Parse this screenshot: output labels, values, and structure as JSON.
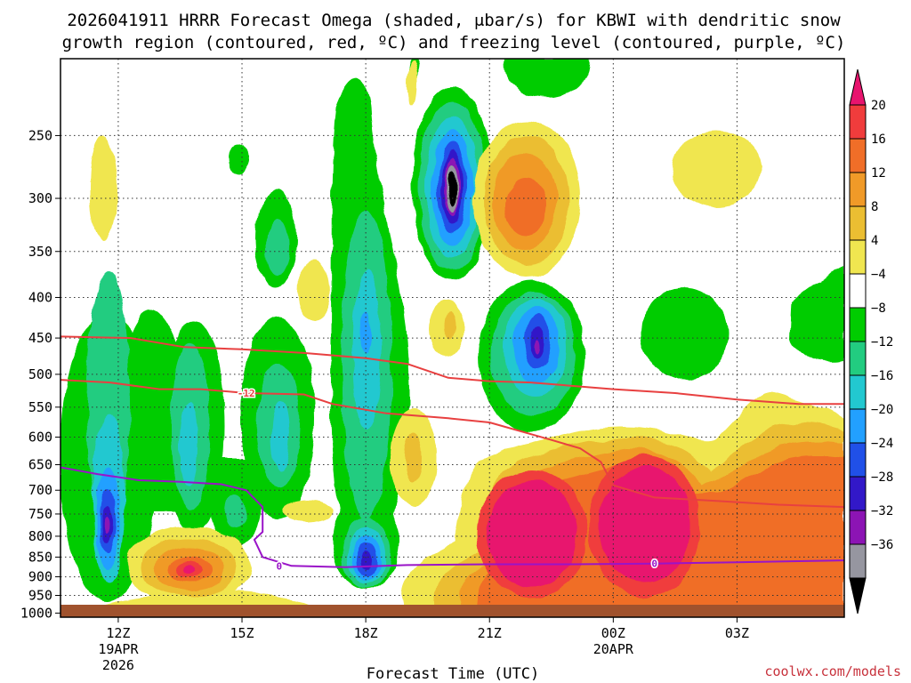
{
  "chart_data": {
    "type": "contour-timeheight",
    "title_line1": "2026041911 HRRR Forecast Omega (shaded, μbar/s) for KBWI with dendritic snow",
    "title_line2": "growth region (contoured, red, ºC) and freezing level (contoured, purple, ºC)",
    "xlabel": "Forecast Time (UTC)",
    "credit": "coolwx.com/models",
    "x_range_hours": [
      10.6,
      29.6
    ],
    "x_ticks": [
      {
        "hour": 12,
        "label": "12Z",
        "sub1": "19APR",
        "sub2": "2026"
      },
      {
        "hour": 15,
        "label": "15Z",
        "sub1": "",
        "sub2": ""
      },
      {
        "hour": 18,
        "label": "18Z",
        "sub1": "",
        "sub2": ""
      },
      {
        "hour": 21,
        "label": "21Z",
        "sub1": "",
        "sub2": ""
      },
      {
        "hour": 24,
        "label": "00Z",
        "sub1": "20APR",
        "sub2": ""
      },
      {
        "hour": 27,
        "label": "03Z",
        "sub1": "",
        "sub2": ""
      }
    ],
    "y_range_hpa": [
      1012,
      200
    ],
    "y_ticks": [
      250,
      300,
      350,
      400,
      450,
      500,
      550,
      600,
      650,
      700,
      750,
      800,
      850,
      900,
      950,
      1000
    ],
    "colorbar": {
      "labels": [
        "20",
        "16",
        "12",
        "8",
        "4",
        "−4",
        "−8",
        "−12",
        "−16",
        "−20",
        "−24",
        "−28",
        "−32",
        "−36"
      ],
      "colors": [
        "#e8146e",
        "#f03c3c",
        "#f06e28",
        "#f09a28",
        "#ebbe32",
        "#f0e650",
        "#ffffff",
        "#00cc00",
        "#22cc80",
        "#22c8d0",
        "#22a0ff",
        "#2050e8",
        "#3218c8",
        "#8c14b4",
        "#9696a0",
        "#000000"
      ]
    },
    "contour_labels": [
      {
        "text": "-12",
        "hour": 15.1,
        "hpa": 528
      },
      {
        "text": "0",
        "hour": 15.9,
        "hpa": 872
      },
      {
        "text": "0",
        "hour": 25.0,
        "hpa": 866
      }
    ],
    "series": [
      {
        "name": "dendritic upper bound (-12°C)",
        "color": "#e84040",
        "points": [
          [
            10.6,
            448
          ],
          [
            12.3,
            450
          ],
          [
            13.6,
            462
          ],
          [
            15.0,
            465
          ],
          [
            16.5,
            470
          ],
          [
            18.0,
            477
          ],
          [
            19.0,
            485
          ],
          [
            20.0,
            505
          ],
          [
            21.0,
            510
          ],
          [
            22.0,
            512
          ],
          [
            24.0,
            522
          ],
          [
            25.5,
            528
          ],
          [
            27.0,
            538
          ],
          [
            28.5,
            545
          ],
          [
            29.6,
            545
          ]
        ]
      },
      {
        "name": "dendritic lower bound (-12°C)",
        "color": "#e84040",
        "points": [
          [
            10.6,
            508
          ],
          [
            11.8,
            512
          ],
          [
            13.0,
            522
          ],
          [
            14.0,
            522
          ],
          [
            15.1,
            528
          ],
          [
            16.5,
            530
          ],
          [
            17.2,
            545
          ],
          [
            18.5,
            560
          ],
          [
            20.0,
            568
          ],
          [
            21.0,
            575
          ],
          [
            22.5,
            605
          ],
          [
            23.2,
            620
          ],
          [
            23.7,
            645
          ],
          [
            24.0,
            690
          ],
          [
            25.0,
            715
          ],
          [
            26.5,
            722
          ],
          [
            28.0,
            730
          ],
          [
            29.6,
            735
          ]
        ]
      },
      {
        "name": "freezing level (0°C)",
        "color": "#9a14c8",
        "points": [
          [
            10.6,
            655
          ],
          [
            11.5,
            668
          ],
          [
            12.5,
            680
          ],
          [
            13.5,
            683
          ],
          [
            14.5,
            688
          ],
          [
            15.1,
            700
          ],
          [
            15.5,
            735
          ],
          [
            15.5,
            790
          ],
          [
            15.3,
            808
          ],
          [
            15.5,
            850
          ],
          [
            16.2,
            872
          ],
          [
            17.5,
            875
          ],
          [
            19.0,
            870
          ],
          [
            21.0,
            868
          ],
          [
            23.0,
            868
          ],
          [
            25.0,
            866
          ],
          [
            27.0,
            863
          ],
          [
            28.5,
            860
          ],
          [
            29.6,
            858
          ]
        ]
      }
    ]
  }
}
